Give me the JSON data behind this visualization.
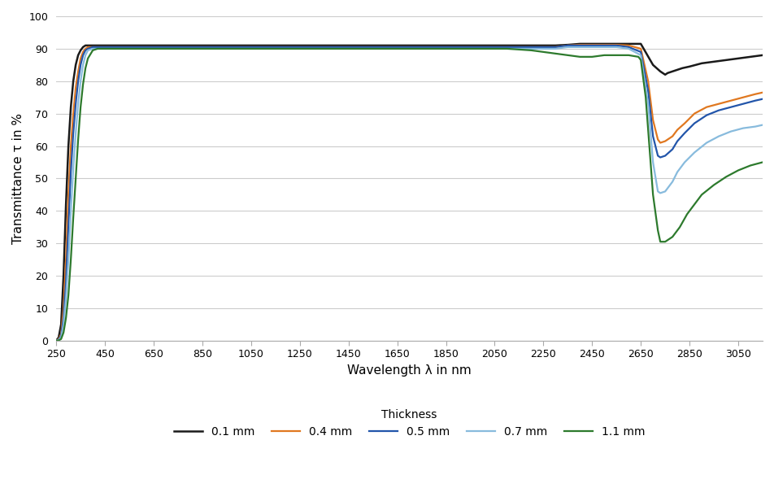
{
  "title": "",
  "xlabel": "Wavelength λ in nm",
  "ylabel": "Transmittance τ in %",
  "xlim": [
    250,
    3150
  ],
  "ylim": [
    0,
    100
  ],
  "xticks": [
    250,
    450,
    650,
    850,
    1050,
    1250,
    1450,
    1650,
    1850,
    2050,
    2250,
    2450,
    2650,
    2850,
    3050
  ],
  "yticks": [
    0,
    10,
    20,
    30,
    40,
    50,
    60,
    70,
    80,
    90,
    100
  ],
  "background_color": "#ffffff",
  "grid_color": "#cccccc",
  "legend_title": "Thickness",
  "series": [
    {
      "label": "0.1 mm",
      "color": "#1a1a1a",
      "lw": 1.8,
      "data_x": [
        250,
        260,
        270,
        280,
        290,
        300,
        310,
        320,
        330,
        340,
        350,
        360,
        370,
        380,
        400,
        420,
        440,
        460,
        500,
        600,
        800,
        1000,
        1200,
        1400,
        1600,
        1800,
        2000,
        2100,
        2200,
        2250,
        2300,
        2350,
        2400,
        2450,
        2500,
        2550,
        2600,
        2650,
        2700,
        2730,
        2750,
        2760,
        2780,
        2800,
        2820,
        2850,
        2900,
        2950,
        3000,
        3050,
        3100,
        3150
      ],
      "data_y": [
        0,
        1,
        5,
        20,
        42,
        60,
        72,
        80,
        85,
        88,
        89.5,
        90.5,
        91,
        91,
        91,
        91,
        91,
        91,
        91,
        91,
        91,
        91,
        91,
        91,
        91,
        91,
        91,
        91,
        91,
        91,
        91,
        91.2,
        91.5,
        91.5,
        91.5,
        91.5,
        91.5,
        91.5,
        85,
        83,
        82,
        82.5,
        83,
        83.5,
        84,
        84.5,
        85.5,
        86,
        86.5,
        87,
        87.5,
        88
      ]
    },
    {
      "label": "0.4 mm",
      "color": "#e07820",
      "lw": 1.6,
      "data_x": [
        250,
        260,
        270,
        280,
        290,
        300,
        310,
        320,
        330,
        340,
        350,
        360,
        370,
        380,
        400,
        420,
        440,
        460,
        500,
        600,
        800,
        1000,
        1200,
        1400,
        1600,
        1800,
        2000,
        2100,
        2200,
        2250,
        2300,
        2350,
        2400,
        2450,
        2500,
        2550,
        2600,
        2650,
        2680,
        2700,
        2720,
        2730,
        2750,
        2780,
        2800,
        2830,
        2870,
        2920,
        2970,
        3020,
        3070,
        3120,
        3150
      ],
      "data_y": [
        0,
        0.5,
        2,
        10,
        25,
        45,
        60,
        70,
        78,
        83,
        87,
        89,
        90,
        90.5,
        90.5,
        90.5,
        90.5,
        90.5,
        90.5,
        90.5,
        90.5,
        90.5,
        90.5,
        90.5,
        90.5,
        90.5,
        90.5,
        90.5,
        90.5,
        90.5,
        90.5,
        91,
        91.2,
        91.2,
        91.2,
        91.2,
        91,
        90,
        80,
        68,
        62,
        61,
        61.5,
        63,
        65,
        67,
        70,
        72,
        73,
        74,
        75,
        76,
        76.5
      ]
    },
    {
      "label": "0.5 mm",
      "color": "#2255aa",
      "lw": 1.6,
      "data_x": [
        250,
        260,
        270,
        280,
        290,
        300,
        310,
        320,
        330,
        340,
        350,
        360,
        370,
        380,
        400,
        420,
        440,
        460,
        500,
        600,
        800,
        1000,
        1200,
        1400,
        1600,
        1800,
        2000,
        2100,
        2200,
        2250,
        2300,
        2350,
        2400,
        2450,
        2500,
        2550,
        2600,
        2650,
        2680,
        2700,
        2720,
        2730,
        2750,
        2780,
        2800,
        2830,
        2870,
        2920,
        2970,
        3020,
        3070,
        3120,
        3150
      ],
      "data_y": [
        0,
        0.3,
        1.5,
        7,
        18,
        35,
        52,
        64,
        73,
        80,
        85,
        88,
        89.5,
        90,
        90.5,
        90.5,
        90.5,
        90.5,
        90.5,
        90.5,
        90.5,
        90.5,
        90.5,
        90.5,
        90.5,
        90.5,
        90.5,
        90.5,
        90.5,
        90.5,
        90.5,
        91,
        91,
        91,
        91,
        91,
        90.5,
        89,
        77,
        63,
        57,
        56.5,
        57,
        59,
        61.5,
        64,
        67,
        69.5,
        71,
        72,
        73,
        74,
        74.5
      ]
    },
    {
      "label": "0.7 mm",
      "color": "#88bbdd",
      "lw": 1.6,
      "data_x": [
        250,
        260,
        270,
        280,
        290,
        300,
        310,
        320,
        330,
        340,
        350,
        360,
        370,
        380,
        400,
        420,
        440,
        460,
        500,
        600,
        800,
        1000,
        1200,
        1400,
        1600,
        1800,
        2000,
        2100,
        2200,
        2250,
        2300,
        2350,
        2400,
        2450,
        2500,
        2550,
        2600,
        2650,
        2680,
        2700,
        2720,
        2730,
        2750,
        2780,
        2800,
        2830,
        2870,
        2920,
        2970,
        3020,
        3070,
        3120,
        3150
      ],
      "data_y": [
        0,
        0.2,
        1,
        5,
        13,
        25,
        40,
        53,
        64,
        73,
        80,
        85,
        88,
        89.5,
        90,
        90,
        90,
        90,
        90,
        90,
        90,
        90,
        90,
        90,
        90,
        90,
        90,
        90,
        90,
        90,
        90,
        90.5,
        90.5,
        90.5,
        90.5,
        90.5,
        90,
        88,
        73,
        55,
        46,
        45.5,
        46,
        49,
        52,
        55,
        58,
        61,
        63,
        64.5,
        65.5,
        66,
        66.5
      ]
    },
    {
      "label": "1.1 mm",
      "color": "#2d7a2d",
      "lw": 1.6,
      "data_x": [
        250,
        260,
        270,
        280,
        290,
        300,
        310,
        320,
        330,
        340,
        350,
        360,
        370,
        380,
        400,
        420,
        440,
        460,
        500,
        600,
        800,
        1000,
        1200,
        1400,
        1600,
        1800,
        2000,
        2100,
        2200,
        2250,
        2300,
        2350,
        2400,
        2450,
        2500,
        2550,
        2600,
        2640,
        2650,
        2670,
        2700,
        2720,
        2730,
        2750,
        2780,
        2810,
        2840,
        2900,
        2950,
        3000,
        3050,
        3100,
        3150
      ],
      "data_y": [
        0,
        0.1,
        0.5,
        2.5,
        7,
        14,
        25,
        38,
        50,
        62,
        72,
        79,
        84,
        87,
        89.5,
        90,
        90,
        90,
        90,
        90,
        90,
        90,
        90,
        90,
        90,
        90,
        90,
        90,
        89.5,
        89,
        88.5,
        88,
        87.5,
        87.5,
        88,
        88,
        88,
        87.5,
        86.5,
        75,
        45,
        34,
        30.5,
        30.5,
        32,
        35,
        39,
        45,
        48,
        50.5,
        52.5,
        54,
        55
      ]
    }
  ]
}
